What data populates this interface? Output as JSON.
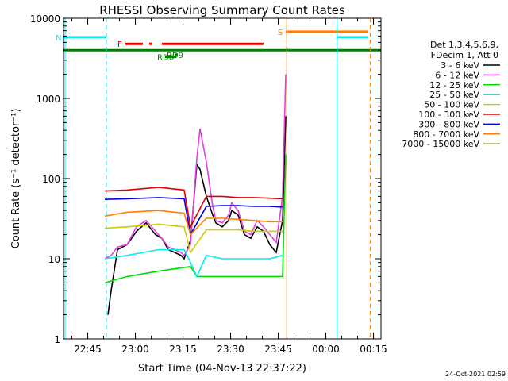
{
  "chart_data": {
    "type": "line",
    "title": "RHESSI Observing Summary Count Rates",
    "xlabel": "Start Time (04-Nov-13 22:37:22)",
    "ylabel": "Count Rate (s⁻¹ detector⁻¹)",
    "y_scale": "log",
    "ylim": [
      1,
      10000
    ],
    "xlim_minutes_after_22_37_22": [
      0,
      100
    ],
    "x_tick_labels": [
      "22:45",
      "23:00",
      "23:15",
      "23:30",
      "23:45",
      "00:00",
      "00:15"
    ],
    "y_tick_labels": [
      "1",
      "10",
      "100",
      "1000",
      "10000"
    ],
    "legend_placement": "right",
    "legend_header": [
      "Det 1,3,4,5,6,9,",
      "FDecim 1, Att 0"
    ],
    "footer_date": "24-Oct-2021 02:59",
    "series": [
      {
        "name": "3 - 6 keV",
        "color": "#000000",
        "x": [
          14,
          15,
          17,
          20,
          23,
          26,
          29,
          31,
          33,
          35,
          37,
          38,
          40,
          42,
          43,
          45,
          47,
          48,
          50,
          52,
          53,
          55,
          57,
          59,
          61,
          63,
          65,
          67,
          69,
          70
        ],
        "y": [
          2,
          4,
          13,
          15,
          22,
          28,
          20,
          18,
          13,
          12,
          11,
          10,
          17,
          150,
          130,
          60,
          35,
          28,
          25,
          30,
          40,
          35,
          20,
          18,
          25,
          22,
          15,
          12,
          30,
          600
        ]
      },
      {
        "name": "6 - 12 keV",
        "color": "#e040e0",
        "x": [
          13,
          15,
          17,
          20,
          23,
          26,
          29,
          31,
          33,
          35,
          37,
          38,
          40,
          42,
          43,
          45,
          47,
          48,
          50,
          52,
          53,
          55,
          57,
          59,
          61,
          63,
          65,
          67,
          69,
          70
        ],
        "y": [
          10,
          11,
          14,
          15,
          25,
          30,
          22,
          18,
          14,
          13,
          12,
          11,
          15,
          180,
          420,
          160,
          45,
          30,
          28,
          35,
          50,
          40,
          22,
          20,
          30,
          25,
          20,
          16,
          60,
          2000
        ]
      },
      {
        "name": "12 - 25 keV",
        "color": "#00dd00",
        "x": [
          13,
          20,
          30,
          40,
          42,
          45,
          50,
          55,
          60,
          65,
          69,
          70
        ],
        "y": [
          5,
          6,
          7,
          8,
          6,
          6,
          6,
          6,
          6,
          6,
          6,
          200
        ]
      },
      {
        "name": "25 - 50 keV",
        "color": "#00eeee",
        "x": [
          13,
          20,
          30,
          38,
          40,
          42,
          45,
          50,
          55,
          60,
          65,
          69
        ],
        "y": [
          10,
          11,
          13,
          13,
          9,
          6,
          11,
          10,
          10,
          10,
          10,
          11
        ]
      },
      {
        "name": "50 - 100 keV",
        "color": "#cccc00",
        "x": [
          13,
          20,
          30,
          38,
          40,
          45,
          50,
          55,
          60,
          65,
          69
        ],
        "y": [
          24,
          25,
          27,
          25,
          12,
          23,
          23,
          23,
          22,
          22,
          22
        ]
      },
      {
        "name": "100 - 300 keV",
        "color": "#e00000",
        "x": [
          13,
          20,
          30,
          38,
          40,
          45,
          50,
          55,
          60,
          65,
          69
        ],
        "y": [
          70,
          72,
          78,
          72,
          25,
          60,
          60,
          58,
          58,
          57,
          56
        ]
      },
      {
        "name": "300 - 800 keV",
        "color": "#0000e0",
        "x": [
          13,
          20,
          30,
          38,
          40,
          45,
          50,
          55,
          60,
          65,
          69
        ],
        "y": [
          55,
          56,
          58,
          56,
          20,
          45,
          46,
          46,
          45,
          45,
          44
        ]
      },
      {
        "name": "800 - 7000 keV",
        "color": "#ff8000",
        "x": [
          13,
          20,
          30,
          38,
          40,
          45,
          50,
          55,
          60,
          65,
          69
        ],
        "y": [
          34,
          38,
          40,
          37,
          20,
          32,
          32,
          31,
          30,
          29,
          29
        ]
      },
      {
        "name": "7000 - 15000 keV",
        "color": "#808000",
        "x": [],
        "y": []
      }
    ],
    "flag_bars": [
      {
        "label": "N",
        "color": "#00eeee",
        "y": 5800,
        "segments": [
          [
            0,
            13.5
          ],
          [
            86,
            96
          ]
        ]
      },
      {
        "label": "F",
        "color": "#ee0000",
        "y": 4800,
        "segments": [
          [
            19.5,
            25
          ],
          [
            27,
            28
          ],
          [
            31,
            45
          ],
          [
            45,
            50
          ],
          [
            50,
            63
          ]
        ]
      },
      {
        "label": "S",
        "color": "#ff8000",
        "y": 6800,
        "segments": [
          [
            70,
            96
          ]
        ]
      },
      {
        "label": "",
        "color": "#008000",
        "y": 4000,
        "segments": [
          [
            0,
            100
          ]
        ]
      },
      {
        "label": "RD9",
        "color": "#008000",
        "y": 3500,
        "segments": [
          [
            35,
            36
          ]
        ]
      },
      {
        "label": "RD6",
        "color": "#008000",
        "y": 3300,
        "segments": [
          [
            32,
            35.5
          ]
        ]
      }
    ],
    "vertical_lines": [
      {
        "x": 0.5,
        "color": "#00eeee",
        "style": "solid"
      },
      {
        "x": 13.5,
        "color": "#00eeee",
        "style": "dashed"
      },
      {
        "x": 70.3,
        "color": "#ff8000",
        "style": "solid"
      },
      {
        "x": 86.2,
        "color": "#00eeee",
        "style": "solid"
      },
      {
        "x": 96.6,
        "color": "#ff8000",
        "style": "dashed"
      }
    ]
  }
}
